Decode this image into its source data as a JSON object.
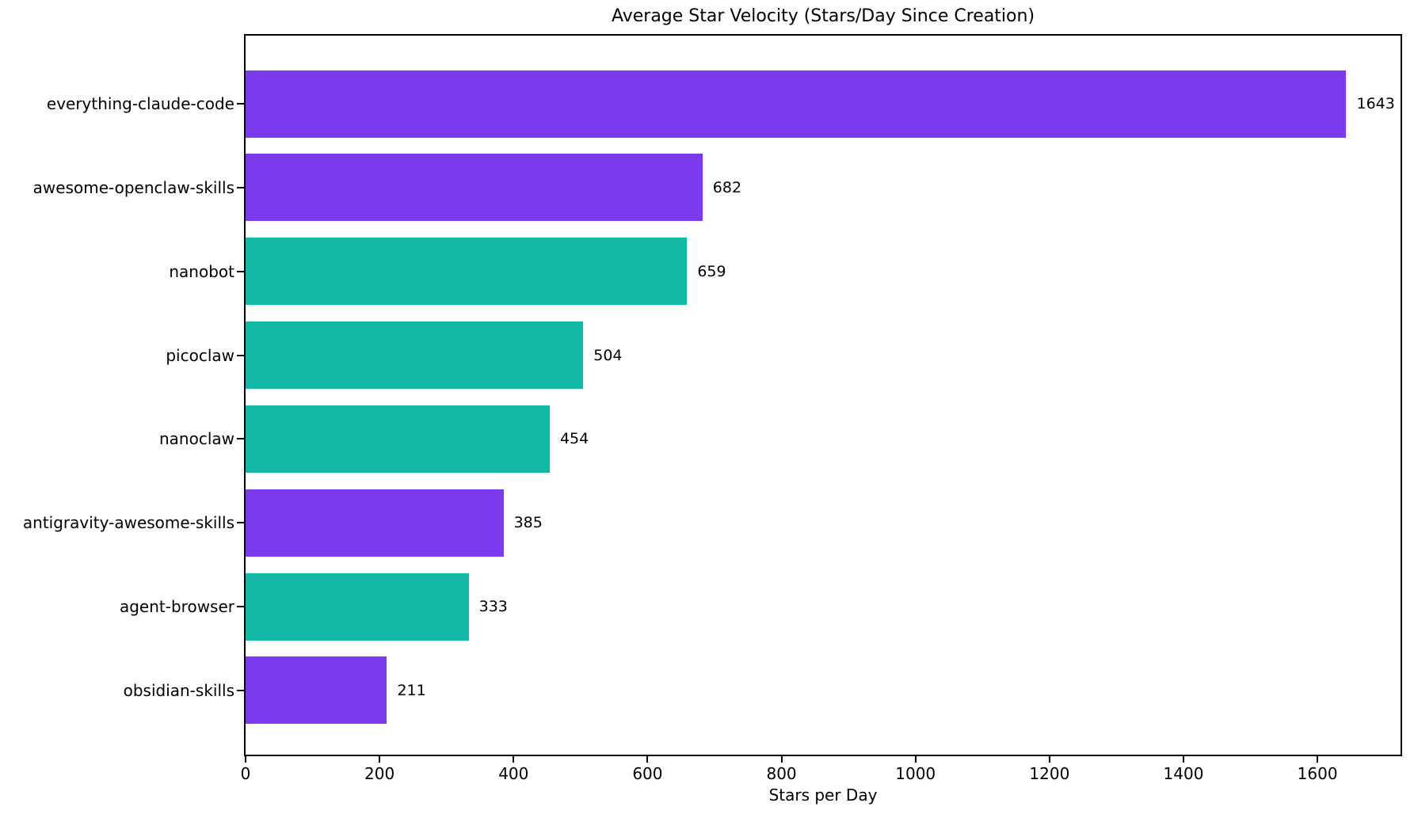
{
  "chart_data": {
    "type": "bar",
    "orientation": "horizontal",
    "title": "Average Star Velocity (Stars/Day Since Creation)",
    "xlabel": "Stars per Day",
    "ylabel": "",
    "categories": [
      "everything-claude-code",
      "awesome-openclaw-skills",
      "nanobot",
      "picoclaw",
      "nanoclaw",
      "antigravity-awesome-skills",
      "agent-browser",
      "obsidian-skills"
    ],
    "values": [
      1643,
      682,
      659,
      504,
      454,
      385,
      333,
      211
    ],
    "value_labels": [
      "1643",
      "682",
      "659",
      "504",
      "454",
      "385",
      "333",
      "211"
    ],
    "bar_colors": [
      "#7c3aed",
      "#7c3aed",
      "#14b8a6",
      "#14b8a6",
      "#14b8a6",
      "#7c3aed",
      "#14b8a6",
      "#7c3aed"
    ],
    "x_ticks": [
      0,
      200,
      400,
      600,
      800,
      1000,
      1200,
      1400,
      1600
    ],
    "xlim": [
      0,
      1724
    ],
    "grid": false,
    "legend_position": "none",
    "palette": {
      "purple": "#7c3aed",
      "teal": "#14b8a6",
      "text": "#000000",
      "spine": "#000000",
      "background": "#ffffff"
    }
  }
}
